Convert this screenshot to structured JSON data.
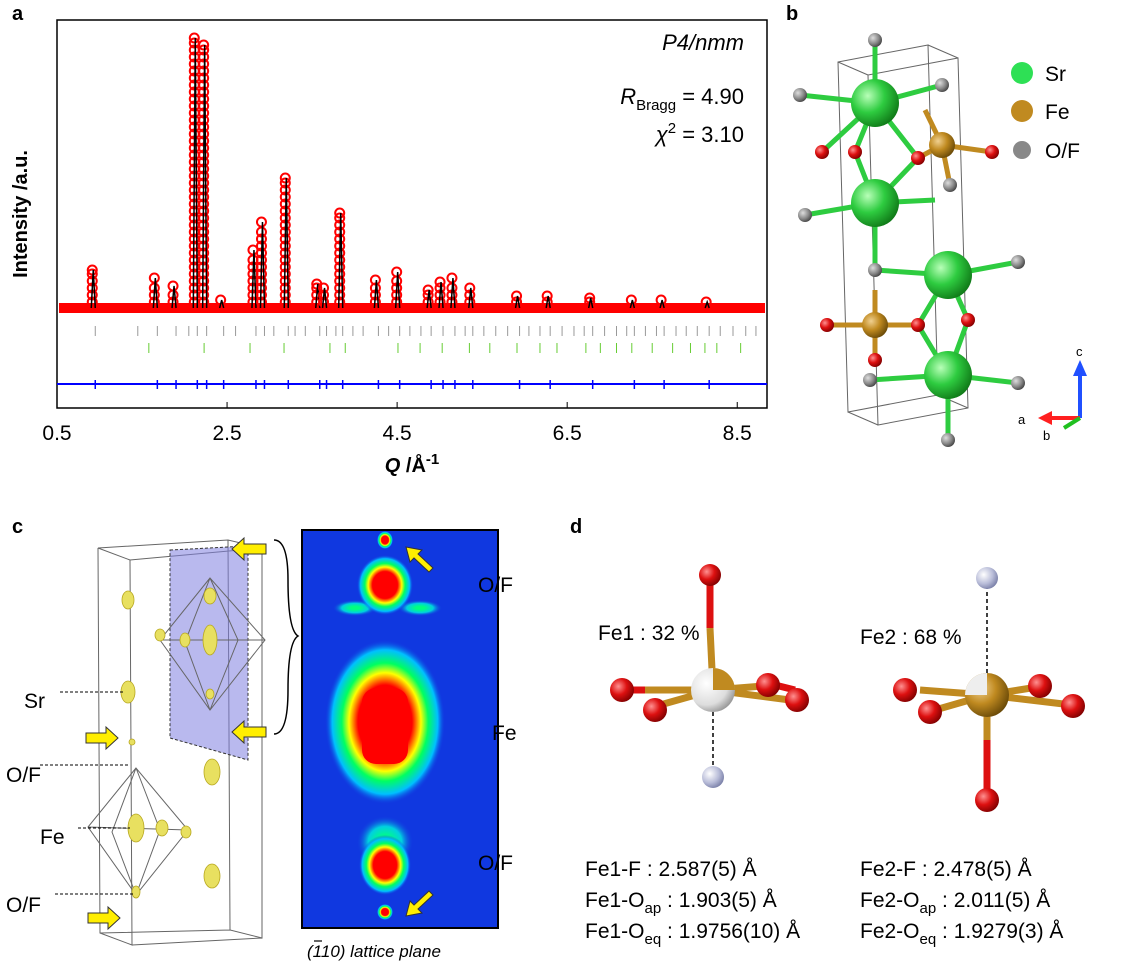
{
  "panel_labels": [
    "a",
    "b",
    "c",
    "d"
  ],
  "chart_data": {
    "type": "line",
    "y_label": "Intensity /a.u.",
    "x_label": {
      "symbol": "Q",
      "unit": " /Å",
      "sup": "-1"
    },
    "space_group": "P4/nmm",
    "r_bragg": {
      "symbol": "R",
      "sub": "Bragg",
      "text": " = 4.90"
    },
    "chi2": {
      "symbol": "χ",
      "sup": "2",
      "text": " = 3.10"
    },
    "x": [
      0.95,
      1.68,
      1.9,
      2.15,
      2.26,
      2.46,
      2.84,
      2.94,
      3.22,
      3.59,
      3.67,
      3.86,
      4.28,
      4.53,
      4.9,
      5.04,
      5.18,
      5.39,
      5.94,
      6.3,
      6.8,
      7.29,
      7.64,
      8.17
    ],
    "values": [
      38,
      30,
      22,
      270,
      263,
      8,
      58,
      86,
      130,
      24,
      20,
      95,
      28,
      36,
      18,
      26,
      30,
      20,
      12,
      12,
      10,
      8,
      8,
      6
    ],
    "reflections_1": [
      0.95,
      1.45,
      1.68,
      1.9,
      2.05,
      2.15,
      2.26,
      2.46,
      2.6,
      2.84,
      2.94,
      3.05,
      3.22,
      3.3,
      3.42,
      3.59,
      3.67,
      3.78,
      3.86,
      3.98,
      4.1,
      4.28,
      4.4,
      4.53,
      4.65,
      4.78,
      4.9,
      5.04,
      5.18,
      5.3,
      5.39,
      5.52,
      5.66,
      5.8,
      5.94,
      6.05,
      6.18,
      6.3,
      6.44,
      6.58,
      6.7,
      6.8,
      6.94,
      7.08,
      7.2,
      7.29,
      7.42,
      7.55,
      7.64,
      7.78,
      7.9,
      8.03,
      8.17,
      8.3,
      8.45,
      8.6,
      8.72
    ],
    "reflections_2": [
      1.58,
      2.23,
      2.77,
      3.17,
      3.71,
      3.89,
      4.51,
      4.77,
      5.03,
      5.35,
      5.59,
      5.91,
      6.18,
      6.38,
      6.72,
      6.89,
      7.08,
      7.26,
      7.5,
      7.74,
      7.95,
      8.12,
      8.26,
      8.54
    ],
    "color_observed": "#ff0000",
    "color_calc": "#000000",
    "color_diff": "#0000ff",
    "color_reflections_1": "#999999",
    "color_reflections_2": "#66cc33",
    "xlim": [
      0.5,
      8.85
    ],
    "ylim": [
      -100,
      288
    ],
    "xticks": [
      0.5,
      2.5,
      4.5,
      6.5,
      8.5
    ]
  },
  "panel_b": {
    "legend": [
      "Sr",
      "Fe",
      "O/F"
    ],
    "axes": [
      "c",
      "a",
      "b"
    ]
  },
  "panel_c": {
    "labels": [
      "Sr",
      "O/F",
      "Fe",
      "O/F"
    ],
    "map_labels": [
      "O/F",
      "Fe",
      "O/F"
    ],
    "caption": {
      "open": "(",
      "bar": "1",
      "rest": "10) lattice plane"
    }
  },
  "panel_d": {
    "fe1": {
      "label": "Fe1 : 32 %",
      "bonds": [
        {
          "name": "Fe1-F",
          "value": " : 2.587(5) Å"
        },
        {
          "name": "Fe1-O",
          "sub": "ap",
          "value": " : 1.903(5) Å"
        },
        {
          "name": "Fe1-O",
          "sub": "eq",
          "value": " : 1.9756(10) Å"
        }
      ]
    },
    "fe2": {
      "label": "Fe2 : 68 %",
      "bonds": [
        {
          "name": "Fe2-F",
          "value": " : 2.478(5) Å"
        },
        {
          "name": "Fe2-O",
          "sub": "ap",
          "value": " : 2.011(5) Å"
        },
        {
          "name": "Fe2-O",
          "sub": "eq",
          "value": " : 1.9279(3) Å"
        }
      ]
    }
  }
}
